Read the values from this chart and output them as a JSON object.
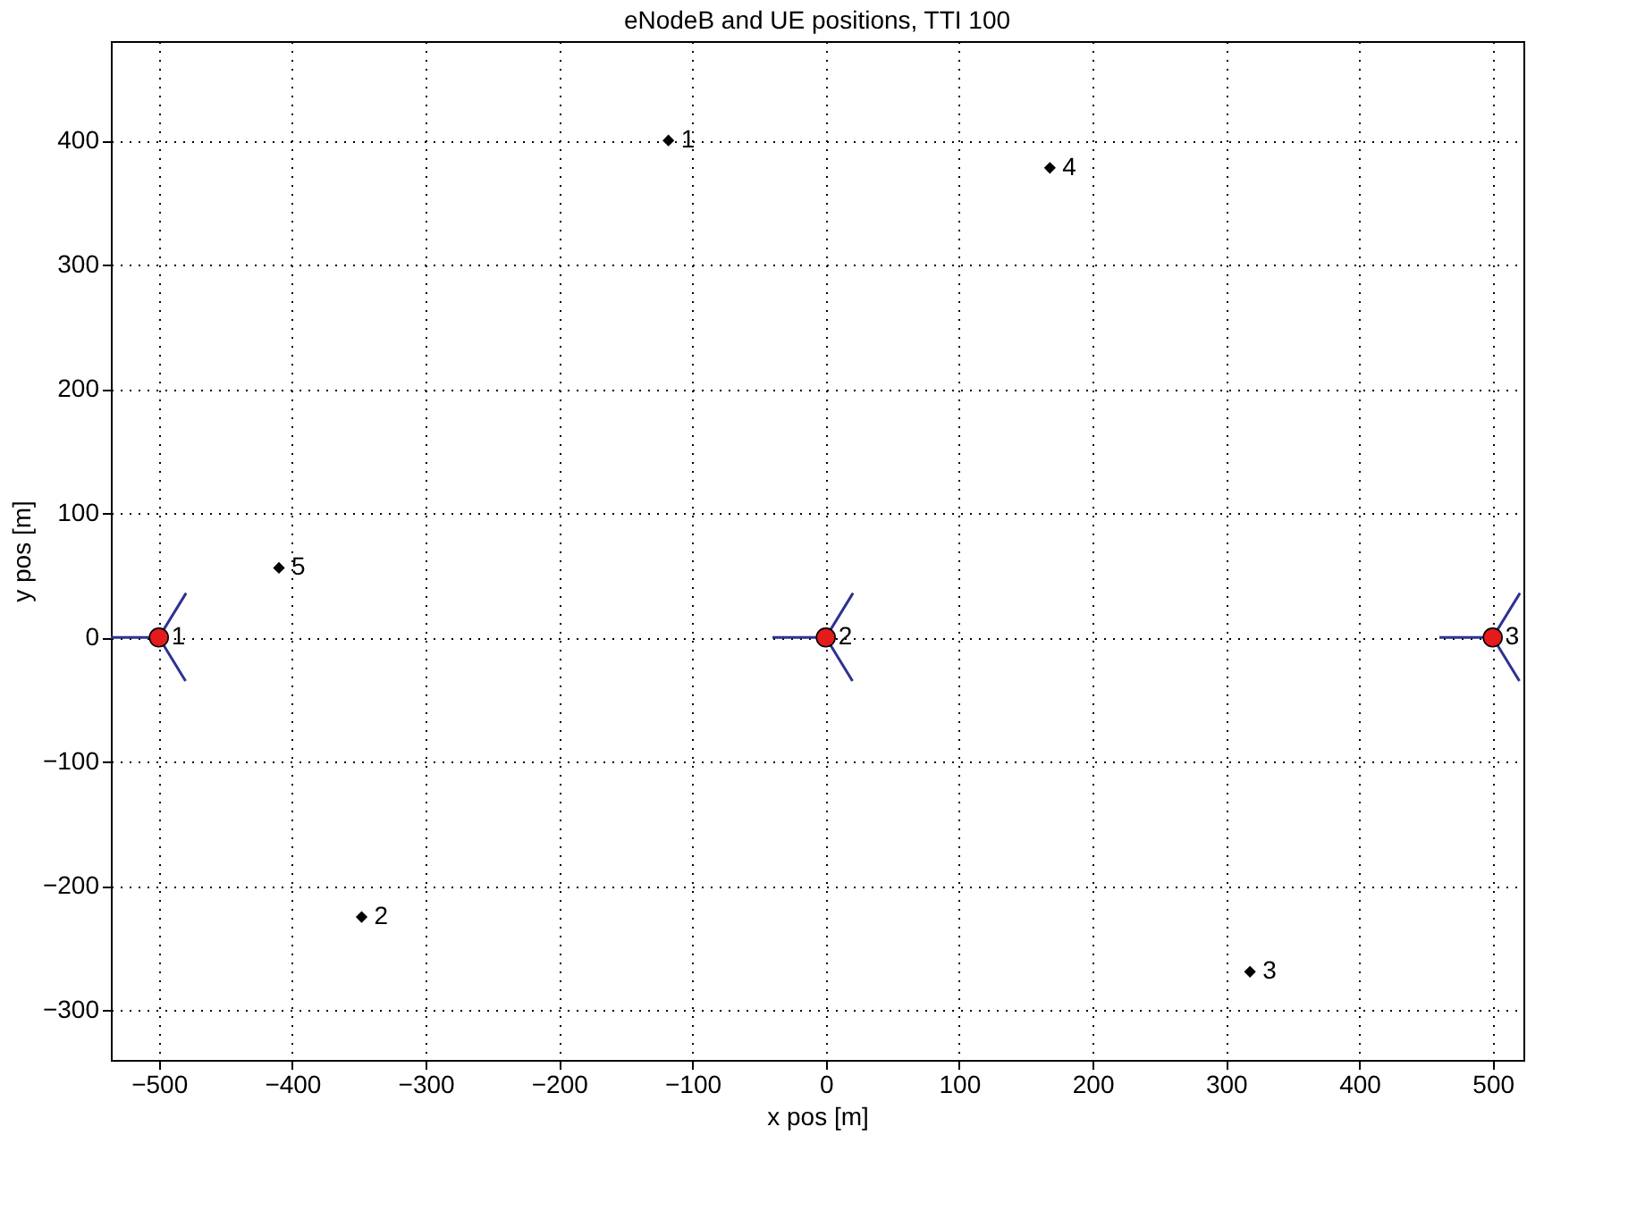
{
  "chart_data": {
    "type": "scatter",
    "title": "eNodeB and UE positions, TTI 100",
    "xlabel": "x pos [m]",
    "ylabel": "y pos [m]",
    "xlim": [
      -536,
      523
    ],
    "ylim": [
      -340,
      480
    ],
    "xticks": [
      -500,
      -400,
      -300,
      -200,
      -100,
      0,
      100,
      200,
      300,
      400,
      500
    ],
    "yticks": [
      -300,
      -200,
      -100,
      0,
      100,
      200,
      300,
      400
    ],
    "grid": true,
    "series": [
      {
        "type": "line",
        "line_style": "solid",
        "marker": "none",
        "color": "#2e3192",
        "x": [
          -536,
          -500,
          -480,
          -500,
          -480
        ],
        "values": [
          0,
          0,
          35,
          0,
          -35
        ]
      },
      {
        "type": "line",
        "line_style": "solid",
        "marker": "none",
        "color": "#2e3192",
        "x": [
          -40,
          0,
          20,
          0,
          20
        ],
        "values": [
          0,
          0,
          35,
          0,
          -35
        ]
      },
      {
        "type": "line",
        "line_style": "solid",
        "marker": "none",
        "color": "#2e3192",
        "x": [
          460,
          500,
          520,
          500,
          520
        ],
        "values": [
          0,
          0,
          35,
          0,
          -35
        ]
      },
      {
        "marker": "circle",
        "color": "#e41a1c",
        "x": [
          -500,
          0,
          500
        ],
        "values": [
          0,
          0,
          0
        ]
      },
      {
        "marker": "diamond",
        "color": "#000000",
        "x": [
          -118,
          -348,
          318,
          168,
          -410
        ],
        "values": [
          400,
          -225,
          -269,
          378,
          56
        ]
      }
    ],
    "annotations": [
      {
        "text": "1",
        "x": -500,
        "y": 0
      },
      {
        "text": "2",
        "x": 0,
        "y": 0
      },
      {
        "text": "3",
        "x": 500,
        "y": 0
      },
      {
        "text": "1",
        "x": -118,
        "y": 400
      },
      {
        "text": "2",
        "x": -348,
        "y": -225
      },
      {
        "text": "3",
        "x": 318,
        "y": -269
      },
      {
        "text": "4",
        "x": 168,
        "y": 378
      },
      {
        "text": "5",
        "x": -410,
        "y": 56
      }
    ]
  }
}
